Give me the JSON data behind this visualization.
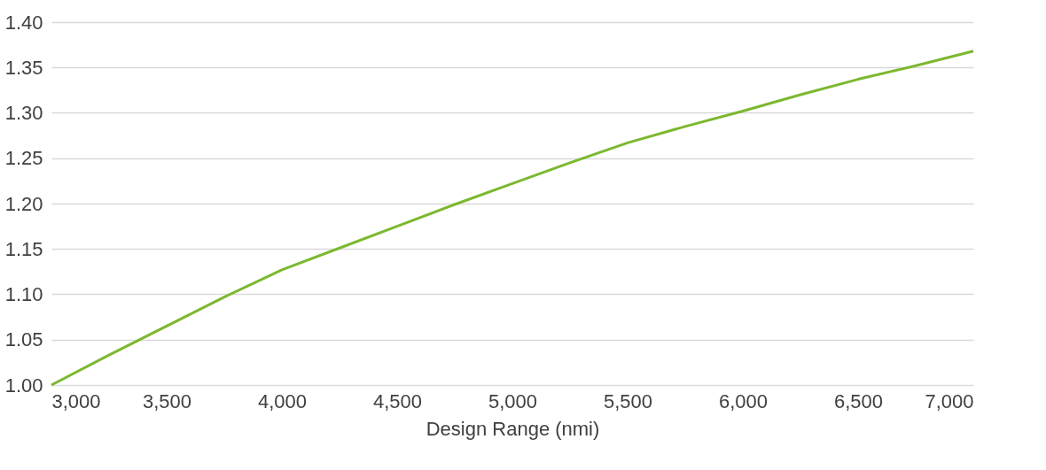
{
  "chart_data": {
    "type": "line",
    "xlabel": "Design Range (nmi)",
    "x": [
      3000,
      3250,
      3500,
      3750,
      4000,
      4250,
      4500,
      4750,
      5000,
      5250,
      5500,
      5750,
      6000,
      6250,
      6500,
      6750,
      7000
    ],
    "series": [
      {
        "color": "#7cb82f",
        "values": [
          1.0,
          1.033,
          1.065,
          1.097,
          1.127,
          1.151,
          1.175,
          1.199,
          1.222,
          1.245,
          1.267,
          1.285,
          1.302,
          1.32,
          1.337,
          1.352,
          1.368
        ]
      }
    ],
    "xlim": [
      3000,
      7000
    ],
    "xticks": [
      {
        "value": 3000,
        "label": "3,000"
      },
      {
        "value": 3500,
        "label": "3,500"
      },
      {
        "value": 4000,
        "label": "4,000"
      },
      {
        "value": 4500,
        "label": "4,500"
      },
      {
        "value": 5000,
        "label": "5,000"
      },
      {
        "value": 5500,
        "label": "5,500"
      },
      {
        "value": 6000,
        "label": "6,000"
      },
      {
        "value": 6500,
        "label": "6,500"
      },
      {
        "value": 7000,
        "label": "7,000"
      }
    ],
    "ylim": [
      1.0,
      1.4
    ],
    "yticks": [
      {
        "value": 1.0,
        "label": "1.00"
      },
      1.05,
      {
        "value": 1.1,
        "label": "1.10"
      },
      1.15,
      {
        "value": 1.2,
        "label": "1.20"
      },
      1.25,
      {
        "value": 1.3,
        "label": "1.30"
      },
      1.35,
      {
        "value": 1.4,
        "label": "1.40"
      }
    ],
    "grid": "y",
    "marker": "none",
    "line_style": "solid"
  }
}
